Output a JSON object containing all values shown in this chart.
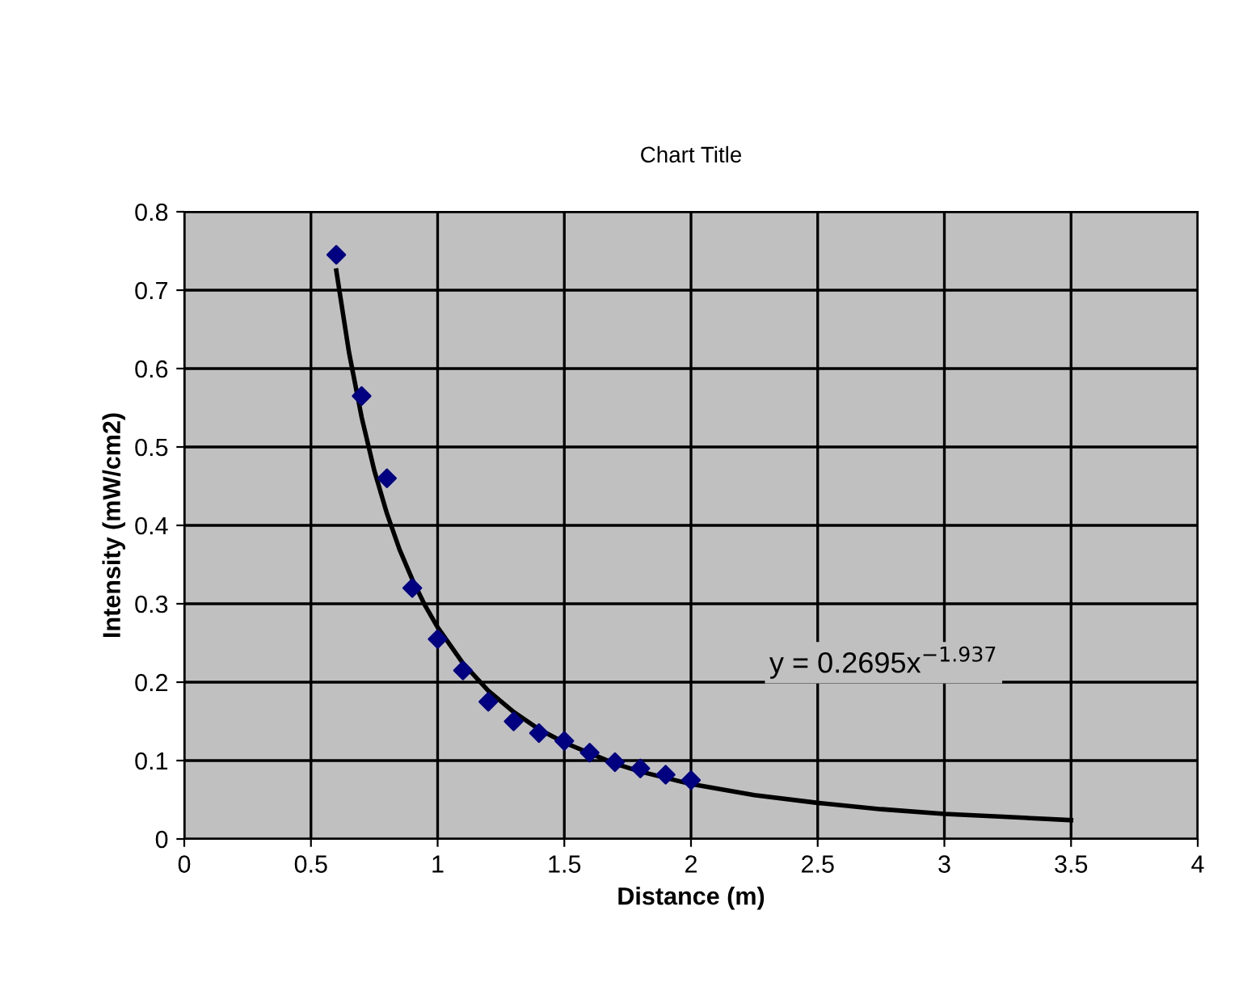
{
  "chart_data": {
    "type": "scatter",
    "title": "Chart Title",
    "xlabel": "Distance (m)",
    "ylabel": "Intensity (mW/cm2)",
    "x": [
      0.6,
      0.7,
      0.8,
      0.9,
      1.0,
      1.1,
      1.2,
      1.3,
      1.4,
      1.5,
      1.6,
      1.7,
      1.8,
      1.9,
      2.0
    ],
    "series": [
      {
        "color": "#000080",
        "marker": "diamond",
        "values": [
          0.745,
          0.565,
          0.46,
          0.32,
          0.255,
          0.215,
          0.175,
          0.15,
          0.135,
          0.125,
          0.11,
          0.098,
          0.09,
          0.082,
          0.075
        ]
      },
      {
        "type": "line",
        "color": "#000000",
        "marker": "none",
        "line_style": "solid",
        "x": [
          0.6,
          0.65,
          0.7,
          0.75,
          0.8,
          0.85,
          0.9,
          0.95,
          1.0,
          1.1,
          1.2,
          1.3,
          1.4,
          1.5,
          1.7,
          1.8,
          2.0,
          2.25,
          2.5,
          2.75,
          3.0,
          3.25,
          3.5
        ],
        "values": [
          0.725,
          0.621,
          0.538,
          0.47,
          0.415,
          0.369,
          0.331,
          0.298,
          0.27,
          0.224,
          0.189,
          0.162,
          0.14,
          0.123,
          0.096,
          0.086,
          0.07,
          0.056,
          0.046,
          0.038,
          0.032,
          0.028,
          0.024
        ]
      }
    ],
    "annotations": [
      "y = 0.2695x$^{−1.937}$"
    ],
    "xlim": [
      0,
      4
    ],
    "xticks": [
      0,
      0.5,
      1,
      1.5,
      2,
      2.5,
      3,
      3.5,
      4
    ],
    "ylim": [
      0,
      0.8
    ],
    "yticks": [
      0,
      0.1,
      0.2,
      0.3,
      0.4,
      0.5,
      0.6,
      0.7,
      0.8
    ],
    "grid": true
  }
}
